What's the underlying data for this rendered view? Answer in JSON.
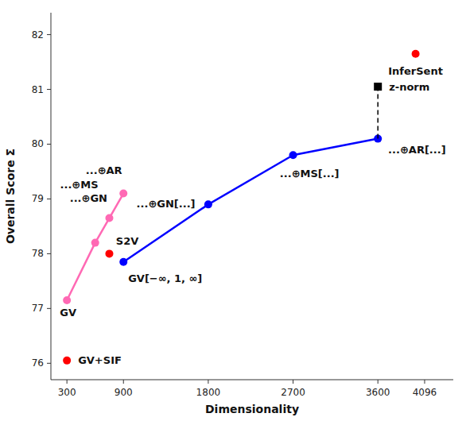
{
  "chart_data": {
    "type": "line",
    "xlabel": "Dimensionality",
    "ylabel": "Overall Score Σ",
    "xlim": [
      130,
      4400
    ],
    "ylim": [
      75.7,
      82.4
    ],
    "xticks": [
      300,
      900,
      1800,
      2700,
      3600,
      4096
    ],
    "yticks": [
      76,
      77,
      78,
      79,
      80,
      81,
      82
    ],
    "grid": false,
    "series": [
      {
        "x": [
          900,
          1800,
          2700,
          3600
        ],
        "values": [
          77.85,
          78.9,
          79.8,
          80.1
        ],
        "color": "#0000ff",
        "marker": "circle",
        "line_style": "solid"
      },
      {
        "x": [
          300,
          600,
          750,
          900
        ],
        "values": [
          77.15,
          78.2,
          78.65,
          79.1
        ],
        "color": "#ff69b4",
        "marker": "circle",
        "line_style": "solid"
      },
      {
        "type": "line",
        "x": [
          3600,
          3600
        ],
        "values": [
          80.1,
          81.05
        ],
        "color": "#000000",
        "marker": "none",
        "line_style": "dashed"
      },
      {
        "type": "scatter",
        "x": [
          300,
          750,
          4000
        ],
        "values": [
          76.05,
          78.0,
          81.65
        ],
        "color": "#ff0000",
        "marker": "circle"
      },
      {
        "type": "scatter",
        "x": [
          3600
        ],
        "values": [
          81.05
        ],
        "color": "#000000",
        "marker": "square"
      }
    ],
    "annotations": [
      {
        "text": "GV+SIF",
        "x": 300,
        "y": 76.05
      },
      {
        "text": "S2V",
        "x": 750,
        "y": 78.0
      },
      {
        "text": "InferSent",
        "x": 4000,
        "y": 81.65
      },
      {
        "text": "z-norm",
        "x": 3600,
        "y": 81.05
      },
      {
        "text": "GV",
        "x": 155,
        "y": 77.15
      },
      {
        "text": "...⊕GN",
        "x": 330,
        "y": 78.55
      },
      {
        "text": "...⊕MS",
        "x": 430,
        "y": 79.05
      },
      {
        "text": "...⊕AR",
        "x": 500,
        "y": 79.52
      },
      {
        "text": "...⊕GN[...]",
        "x": 1350,
        "y": 78.6
      },
      {
        "text": "...⊕MS[...]",
        "x": 2500,
        "y": 79.47
      },
      {
        "text": "...⊕AR[...]",
        "x": 3650,
        "y": 79.9
      },
      {
        "text": "GV[−∞, 1, ∞]",
        "x": 950,
        "y": 77.55
      }
    ]
  }
}
